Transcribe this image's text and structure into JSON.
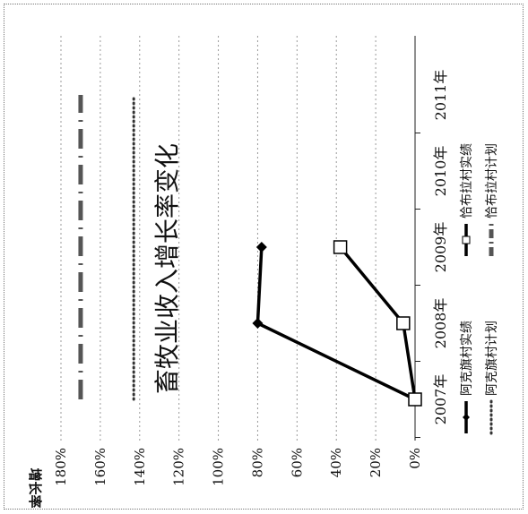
{
  "chart_data": {
    "type": "line",
    "title": "畜牧业收入增长率变化",
    "ylabel": "增长率",
    "categories": [
      "2007年",
      "2008年",
      "2009年",
      "2010年",
      "2011年"
    ],
    "y_ticks": [
      "0%",
      "20%",
      "40%",
      "60%",
      "80%",
      "100%",
      "120%",
      "140%",
      "160%",
      "180%"
    ],
    "ylim": [
      0,
      180
    ],
    "orientation": "rotated 90° counter-clockwise",
    "grid": true,
    "legend_position": "bottom",
    "series": [
      {
        "name": "阿克旗村实绩",
        "style": "solid-diamond",
        "color": "#000000",
        "values": [
          0,
          80,
          78,
          null,
          null
        ]
      },
      {
        "name": "阿克旗村计划",
        "style": "dotted",
        "color": "#333333",
        "values": [
          143,
          143,
          143,
          143,
          143
        ]
      },
      {
        "name": "恰布拉村实绩",
        "style": "solid-square",
        "color": "#000000",
        "values": [
          0,
          6,
          38,
          null,
          null
        ]
      },
      {
        "name": "恰布拉村计划",
        "style": "dash-dot",
        "color": "#555555",
        "values": [
          170,
          170,
          170,
          170,
          170
        ]
      }
    ]
  }
}
